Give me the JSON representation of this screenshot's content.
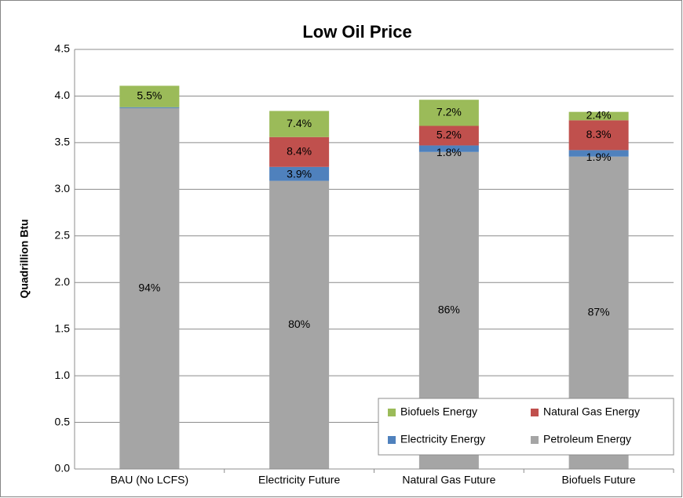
{
  "chart_data": {
    "type": "stacked_bar",
    "title": "Low Oil Price",
    "y_label": "Quadrillion Btu",
    "categories": [
      "BAU (No LCFS)",
      "Electricity Future",
      "Natural Gas Future",
      "Biofuels Future"
    ],
    "series": [
      {
        "name": "Petroleum Energy",
        "color": "#a5a5a5",
        "values": [
          3.87,
          3.09,
          3.4,
          3.35
        ],
        "labels": [
          "94%",
          "80%",
          "86%",
          "87%"
        ]
      },
      {
        "name": "Electricity Energy",
        "color": "#4f81bd",
        "values": [
          0.01,
          0.15,
          0.07,
          0.07
        ],
        "labels": [
          null,
          "3.9%",
          "1.8%",
          "1.9%"
        ]
      },
      {
        "name": "Natural Gas Energy",
        "color": "#c0504d",
        "values": [
          0,
          0.32,
          0.21,
          0.32
        ],
        "labels": [
          null,
          "8.4%",
          "5.2%",
          "8.3%"
        ]
      },
      {
        "name": "Biofuels Energy",
        "color": "#9bbb59",
        "values": [
          0.23,
          0.28,
          0.28,
          0.09
        ],
        "labels": [
          "5.5%",
          "7.4%",
          "7.2%",
          "2.4%"
        ]
      }
    ],
    "ylim": [
      0,
      4.5
    ],
    "yticks": [
      {
        "value": 0,
        "label": "0.0"
      },
      {
        "value": 0.5,
        "label": "0.5"
      },
      {
        "value": 1,
        "label": "1.0"
      },
      {
        "value": 1.5,
        "label": "1.5"
      },
      {
        "value": 2,
        "label": "2.0"
      },
      {
        "value": 2.5,
        "label": "2.5"
      },
      {
        "value": 3,
        "label": "3.0"
      },
      {
        "value": 3.5,
        "label": "3.5"
      },
      {
        "value": 4,
        "label": "4.0"
      },
      {
        "value": 4.5,
        "label": "4.5"
      }
    ],
    "grid": true,
    "legend": "lower right"
  }
}
